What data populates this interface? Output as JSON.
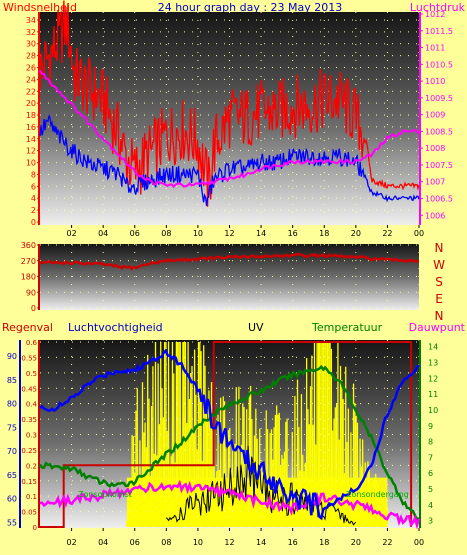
{
  "colors": {
    "background": "#ffff99",
    "wind_gust": "#ff0000",
    "wind_avg": "#0000ff",
    "pressure": "#ff00ff",
    "direction": "#cc0000",
    "humidity": "#0000ff",
    "temperature": "#008000",
    "dewpoint": "#ff00ff",
    "uv": "#ffff00",
    "rain": "#cc0000",
    "solar": "#000000",
    "title": "#0000cc"
  },
  "header": {
    "left_label": "Windsnelheid",
    "title": "24 hour graph day : 23 May 2013",
    "right_label": "Luchtdruk"
  },
  "x_ticks": [
    "02",
    "04",
    "06",
    "08",
    "10",
    "12",
    "14",
    "16",
    "18",
    "20",
    "22",
    "00"
  ],
  "direction_letters": [
    "N",
    "W",
    "S",
    "E",
    "N"
  ],
  "bottom_header": {
    "rain": "Regenval",
    "humidity": "Luchtvochtigheid",
    "uv": "UV",
    "temperature": "Temperatuur",
    "dewpoint": "Dauwpunt"
  },
  "annotations": {
    "sunrise": "Zonsopkomst",
    "sunset": "Zonsondergang"
  },
  "chart_data": [
    {
      "type": "line",
      "x_unit": "hour",
      "left_axis": {
        "ticks": [
          "0",
          "2",
          "4",
          "6",
          "8",
          "10",
          "12",
          "14",
          "16",
          "18",
          "20",
          "22",
          "24",
          "26",
          "28",
          "30",
          "32",
          "34"
        ],
        "ylim": [
          0,
          35
        ]
      },
      "right_axis": {
        "ticks": [
          "1006",
          "1006.5",
          "1007",
          "1007.5",
          "1008",
          "1008.5",
          "1009",
          "1009.5",
          "1010",
          "1010.5",
          "1011",
          "1011.5",
          "1012"
        ],
        "ylim": [
          1005.8,
          1012
        ]
      },
      "series": [
        {
          "key": "wind_gust",
          "axis": "left",
          "hours": [
            0,
            1,
            1.7,
            2.2,
            3,
            4,
            5,
            5.5,
            6,
            7,
            8,
            9,
            10,
            10.7,
            11,
            12,
            13,
            14,
            15,
            16,
            17,
            18,
            19,
            20,
            20.7,
            21,
            22,
            23,
            24
          ],
          "values": [
            25,
            29,
            33,
            24,
            22,
            20,
            14,
            10,
            8,
            11,
            14,
            15,
            13,
            5,
            12,
            17,
            17,
            18,
            18,
            19,
            19,
            20,
            20,
            17,
            13,
            7,
            6,
            6,
            6
          ]
        },
        {
          "key": "wind_avg",
          "axis": "left",
          "hours": [
            0,
            0.5,
            1,
            2,
            3,
            4,
            5,
            5.5,
            6,
            7,
            8,
            9,
            10,
            10.5,
            11,
            12,
            13,
            14,
            15,
            16,
            17,
            18,
            19,
            20,
            20.5,
            21,
            22,
            23,
            24
          ],
          "values": [
            15,
            17,
            15,
            12,
            10,
            9,
            8,
            6,
            6,
            7,
            8,
            8,
            8,
            3,
            7,
            9,
            9,
            10,
            10,
            11,
            11,
            11,
            11,
            10,
            8,
            5,
            4,
            4,
            4
          ]
        },
        {
          "key": "pressure",
          "axis": "right",
          "hours": [
            0,
            1,
            2,
            3,
            4,
            5,
            6,
            7,
            8,
            9,
            10,
            11,
            12,
            13,
            14,
            15,
            16,
            17,
            18,
            19,
            20,
            21,
            22,
            23,
            24
          ],
          "values": [
            1010.3,
            1009.8,
            1009.3,
            1008.8,
            1008.3,
            1007.8,
            1007.3,
            1007,
            1006.9,
            1006.9,
            1006.9,
            1007,
            1007.1,
            1007.2,
            1007.4,
            1007.5,
            1007.6,
            1007.6,
            1007.6,
            1007.6,
            1007.6,
            1007.8,
            1008.3,
            1008.5,
            1008.5
          ]
        }
      ]
    },
    {
      "type": "line",
      "x_unit": "hour",
      "y_ticks": [
        "0",
        "90",
        "180",
        "270",
        "360"
      ],
      "ylim": [
        0,
        360
      ],
      "series": [
        {
          "key": "wind_direction",
          "hours": [
            0,
            2,
            4,
            5,
            6,
            7,
            8,
            10,
            12,
            14,
            16,
            18,
            20,
            22,
            24
          ],
          "values": [
            260,
            258,
            250,
            235,
            230,
            255,
            270,
            280,
            290,
            295,
            300,
            300,
            290,
            275,
            270
          ]
        }
      ]
    },
    {
      "type": "line",
      "x_unit": "hour",
      "axes": {
        "rain": {
          "ticks": [
            "0",
            "0.05",
            "0.1",
            "0.15",
            "0.2",
            "0.25",
            "0.3",
            "0.35",
            "0.4",
            "0.45",
            "0.5",
            "0.55",
            "0.6"
          ],
          "ylim": [
            0,
            0.6
          ]
        },
        "humidity": {
          "ticks": [
            "55",
            "60",
            "65",
            "70",
            "75",
            "80",
            "85",
            "90"
          ],
          "ylim": [
            54,
            93
          ]
        },
        "temperature": {
          "ticks": [
            "3",
            "4",
            "5",
            "6",
            "7",
            "8",
            "9",
            "10",
            "11",
            "12",
            "13",
            "14"
          ],
          "ylim": [
            2.6,
            14.3
          ]
        }
      },
      "series": [
        {
          "key": "rain",
          "axis": "rain",
          "hours": [
            0,
            1.5,
            1.5,
            11,
            11,
            23.5,
            23.5
          ],
          "values": [
            0,
            0,
            0.2,
            0.2,
            0.6,
            0.6,
            0
          ]
        },
        {
          "key": "humidity",
          "axis": "humidity",
          "hours": [
            0,
            1,
            2,
            3,
            4,
            5,
            6,
            7,
            8,
            9,
            10,
            11,
            12,
            13,
            14,
            15,
            16,
            17,
            18,
            19,
            20,
            21,
            22,
            23,
            24
          ],
          "values": [
            79,
            79,
            81,
            84,
            86,
            87,
            87,
            89,
            91,
            88,
            83,
            76,
            72,
            68,
            66,
            63,
            61,
            59,
            58,
            60,
            62,
            67,
            78,
            85,
            88
          ]
        },
        {
          "key": "temperature",
          "axis": "temperature",
          "hours": [
            0,
            1,
            2,
            3,
            4,
            5,
            6,
            7,
            8,
            9,
            10,
            11,
            12,
            13,
            14,
            15,
            16,
            17,
            18,
            19,
            20,
            21,
            22,
            23,
            24
          ],
          "values": [
            6.5,
            6.4,
            6.3,
            5.8,
            5.4,
            5.2,
            5.5,
            6.3,
            7.2,
            8,
            9,
            9.8,
            10.3,
            10.8,
            11.2,
            11.8,
            12.2,
            12.5,
            12.7,
            11.8,
            10,
            8.2,
            6,
            4.2,
            3
          ]
        },
        {
          "key": "dewpoint",
          "axis": "temperature",
          "hours": [
            0,
            2,
            4,
            6,
            8,
            10,
            12,
            14,
            16,
            18,
            20,
            22,
            24
          ],
          "values": [
            4.1,
            4.3,
            4.6,
            5,
            5.2,
            5,
            4.7,
            4.2,
            3.8,
            4.5,
            4,
            3.3,
            2.9
          ]
        },
        {
          "key": "uv",
          "axis": "rain",
          "hours": [
            5.5,
            6,
            7,
            8,
            9,
            10,
            11,
            12,
            13,
            14,
            15,
            16,
            17,
            18,
            19,
            20,
            21,
            22
          ],
          "values": [
            0.05,
            0.3,
            0.45,
            0.55,
            0.55,
            0.5,
            0.35,
            0.3,
            0.35,
            0.25,
            0.3,
            0.3,
            0.45,
            0.6,
            0.45,
            0.3,
            0.15,
            0.05
          ]
        },
        {
          "key": "solar",
          "axis": "rain",
          "hours": [
            8,
            9,
            10,
            11,
            12,
            13,
            14,
            15,
            16,
            17,
            18,
            19,
            20
          ],
          "values": [
            0.02,
            0.05,
            0.08,
            0.1,
            0.12,
            0.18,
            0.12,
            0.1,
            0.09,
            0.07,
            0.06,
            0.04,
            0.01
          ]
        }
      ]
    }
  ]
}
